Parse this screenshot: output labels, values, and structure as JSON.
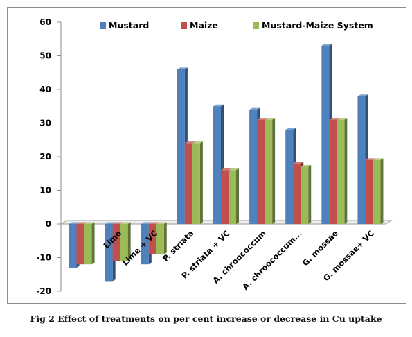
{
  "caption": "Fig 2 Effect of treatments on per cent increase or decrease in Cu uptake",
  "colors": {
    "Mustard": "#4f81bd",
    "Maize": "#c0504d",
    "Mustard-Maize System": "#9bbb59"
  },
  "chart_data": {
    "type": "bar",
    "title": "",
    "xlabel": "",
    "ylabel": "",
    "ylim": [
      -20,
      60
    ],
    "yticks": [
      -20,
      -10,
      0,
      10,
      20,
      30,
      40,
      50,
      60
    ],
    "grid": false,
    "legend_position": "top",
    "categories": [
      "",
      "Lime",
      "Lime + VC",
      "P. striata",
      "P. striata + VC",
      "A. chroococcum",
      "A. chroococcum...",
      "G. mossae",
      "G. mossae+ VC"
    ],
    "series": [
      {
        "name": "Mustard",
        "values": [
          -13,
          -17,
          -12,
          46,
          35,
          34,
          28,
          53,
          38
        ]
      },
      {
        "name": "Maize",
        "values": [
          -12,
          -11,
          -9,
          24,
          16,
          31,
          18,
          31,
          19
        ]
      },
      {
        "name": "Mustard-Maize System",
        "values": [
          -12,
          -11,
          -9,
          24,
          16,
          31,
          17,
          31,
          19
        ]
      }
    ]
  }
}
